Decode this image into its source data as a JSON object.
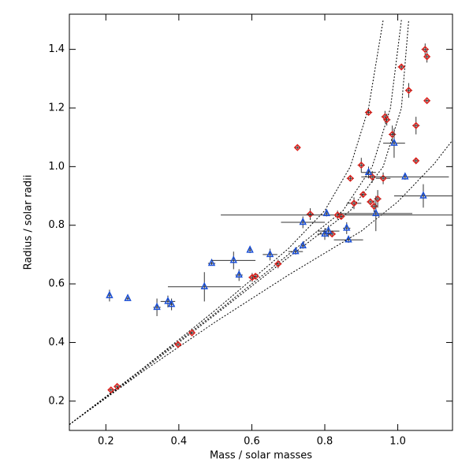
{
  "chart_data": {
    "type": "scatter",
    "x_label": "Mass / solar masses",
    "y_label": "Radius / solar radii",
    "xlim": [
      0.1,
      1.15
    ],
    "ylim": [
      0.1,
      1.52
    ],
    "xticks": [
      0.2,
      0.4,
      0.6,
      0.8,
      {
        "value": 1,
        "label": "1.0"
      }
    ],
    "yticks": [
      0.2,
      0.4,
      0.6,
      0.8,
      {
        "value": 1,
        "label": "1.0"
      },
      1.2,
      1.4
    ],
    "series": [
      {
        "marker": "diamond",
        "color": "#e0201b",
        "x": [
          0.214,
          0.231,
          0.398,
          0.436,
          0.601,
          0.61,
          0.672,
          0.725,
          0.76,
          0.82,
          0.835,
          0.845,
          0.87,
          0.88,
          0.9,
          0.905,
          0.92,
          0.925,
          0.93,
          0.935,
          0.945,
          0.96,
          0.965,
          0.97,
          0.985,
          1.01,
          1.03,
          1.05,
          1.05,
          1.075,
          1.08,
          1.08
        ],
        "values": [
          0.238,
          0.25,
          0.393,
          0.433,
          0.622,
          0.626,
          0.668,
          1.065,
          0.838,
          0.77,
          0.835,
          0.83,
          0.96,
          0.875,
          1.005,
          0.905,
          1.185,
          0.88,
          0.965,
          0.865,
          0.89,
          0.96,
          1.17,
          1.16,
          1.11,
          1.34,
          1.26,
          1.14,
          1.02,
          1.4,
          1.375,
          1.225
        ],
        "xerr": [
          0.005,
          0.005,
          0.005,
          0.005,
          0.01,
          0.01,
          0.01,
          0.005,
          0.01,
          0.01,
          0.32,
          0.01,
          0.01,
          0.02,
          0.01,
          0.01,
          0.01,
          0.01,
          0.01,
          0.01,
          0.01,
          0.02,
          0.01,
          0.01,
          0.01,
          0.01,
          0.01,
          0.01,
          0.005,
          0.01,
          0.005,
          0.005
        ],
        "yerr": [
          0.005,
          0.005,
          0.005,
          0.005,
          0.015,
          0.01,
          0.015,
          0.005,
          0.02,
          0.01,
          0.015,
          0.01,
          0.01,
          0.02,
          0.025,
          0.01,
          0.01,
          0.01,
          0.02,
          0.02,
          0.03,
          0.02,
          0.02,
          0.02,
          0.03,
          0.01,
          0.025,
          0.03,
          0.01,
          0.02,
          0.02,
          0.005
        ]
      },
      {
        "marker": "triangle",
        "color": "#1a4fd6",
        "x": [
          0.21,
          0.26,
          0.34,
          0.37,
          0.38,
          0.47,
          0.49,
          0.55,
          0.565,
          0.595,
          0.65,
          0.72,
          0.74,
          0.74,
          0.8,
          0.81,
          0.805,
          0.86,
          0.865,
          0.92,
          0.94,
          0.99,
          1.02,
          1.07
        ],
        "values": [
          0.56,
          0.55,
          0.52,
          0.54,
          0.53,
          0.59,
          0.67,
          0.68,
          0.63,
          0.715,
          0.7,
          0.71,
          0.81,
          0.73,
          0.77,
          0.78,
          0.84,
          0.79,
          0.75,
          0.98,
          0.84,
          1.08,
          0.965,
          0.9
        ],
        "xerr": [
          0.005,
          0.005,
          0.01,
          0.02,
          0.005,
          0.1,
          0.01,
          0.06,
          0.01,
          0.005,
          0.02,
          0.02,
          0.06,
          0.005,
          0.02,
          0.03,
          0.005,
          0.01,
          0.04,
          0.02,
          0.1,
          0.03,
          0.12,
          0.08
        ],
        "yerr": [
          0.02,
          0.005,
          0.03,
          0.02,
          0.02,
          0.05,
          0.005,
          0.03,
          0.02,
          0.01,
          0.02,
          0.01,
          0.02,
          0.01,
          0.02,
          0.02,
          0.01,
          0.02,
          0.01,
          0.02,
          0.06,
          0.05,
          0.01,
          0.04
        ]
      }
    ],
    "model_curves": [
      {
        "x": [
          0.1,
          0.3,
          0.5,
          0.7,
          0.8,
          0.87,
          0.92,
          0.96
        ],
        "values": [
          0.12,
          0.31,
          0.51,
          0.72,
          0.85,
          1.0,
          1.2,
          1.5
        ]
      },
      {
        "x": [
          0.1,
          0.3,
          0.5,
          0.7,
          0.85,
          0.93,
          0.98,
          1.01
        ],
        "values": [
          0.12,
          0.31,
          0.5,
          0.7,
          0.85,
          1.0,
          1.2,
          1.5
        ]
      },
      {
        "x": [
          0.1,
          0.3,
          0.5,
          0.7,
          0.87,
          0.96,
          1.01,
          1.03
        ],
        "values": [
          0.12,
          0.305,
          0.495,
          0.69,
          0.85,
          1.0,
          1.2,
          1.5
        ]
      },
      {
        "x": [
          0.1,
          0.3,
          0.5,
          0.7,
          0.9,
          1.0,
          1.1,
          1.15
        ],
        "values": [
          0.12,
          0.3,
          0.47,
          0.63,
          0.78,
          0.88,
          1.01,
          1.09
        ]
      }
    ]
  }
}
